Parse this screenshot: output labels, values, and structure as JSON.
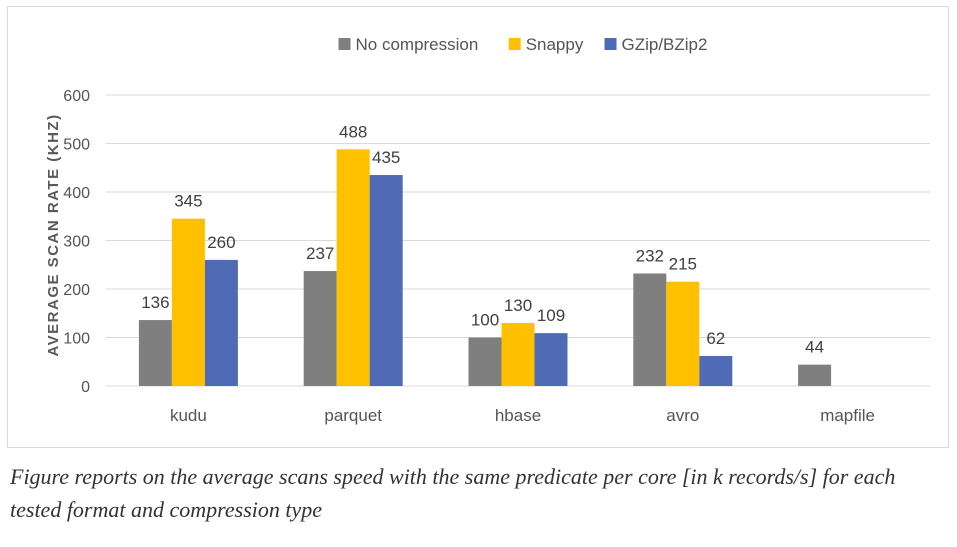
{
  "caption": "Figure reports on the average scans speed with the same predicate per core [in k records/s] for each tested format and compression type",
  "chart_data": {
    "type": "bar",
    "ylabel": "AVERAGE SCAN RATE (KHZ)",
    "xlabel": "",
    "ylim": [
      0,
      600
    ],
    "yticks": [
      0,
      100,
      200,
      300,
      400,
      500,
      600
    ],
    "grid": true,
    "legend_position": "top",
    "categories": [
      "kudu",
      "parquet",
      "hbase",
      "avro",
      "mapfile"
    ],
    "series": [
      {
        "name": "No compression",
        "color": "#7f7f7f",
        "values": [
          136,
          237,
          100,
          232,
          44
        ]
      },
      {
        "name": "Snappy",
        "color": "#ffc000",
        "values": [
          345,
          488,
          130,
          215,
          null
        ]
      },
      {
        "name": "GZip/BZip2",
        "color": "#4f6bb5",
        "values": [
          260,
          435,
          109,
          62,
          null
        ]
      }
    ]
  }
}
